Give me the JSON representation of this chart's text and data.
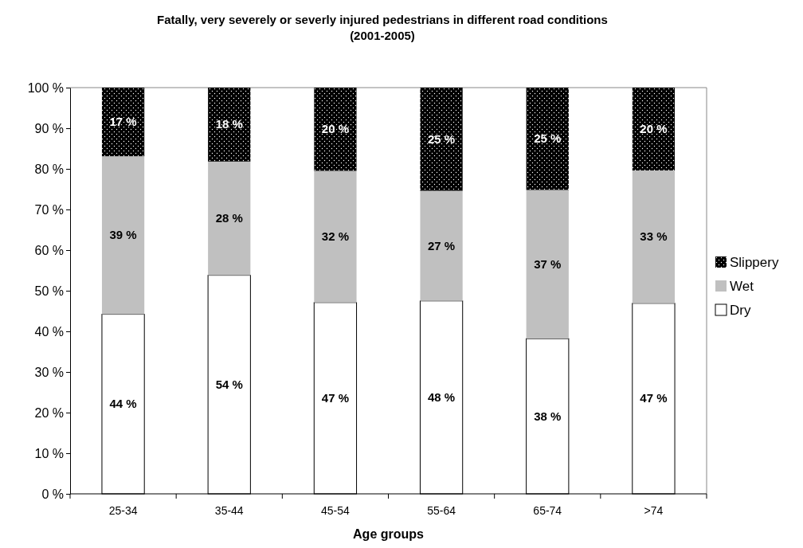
{
  "chart_data": {
    "type": "bar",
    "stacked": true,
    "title": "Fatally, very severely or severly injured pedestrians in different road conditions (2001-2005)",
    "xlabel": "Age groups",
    "categories": [
      "25-34",
      "35-44",
      "45-54",
      "55-64",
      "65-74",
      ">74"
    ],
    "series": [
      {
        "name": "Dry",
        "color": "#ffffff",
        "values": [
          44.2,
          53.8,
          47.1,
          47.5,
          38.2,
          46.9
        ],
        "value_labels": [
          "44 %",
          "54 %",
          "47 %",
          "48 %",
          "38 %",
          "47 %"
        ]
      },
      {
        "name": "Wet",
        "color": "#c0c0c0",
        "values": [
          38.9,
          28.0,
          32.4,
          27.1,
          36.6,
          32.7
        ],
        "value_labels": [
          "39 %",
          "28 %",
          "32 %",
          "27 %",
          "37 %",
          "33 %"
        ]
      },
      {
        "name": "Slippery",
        "color": "#000000",
        "values": [
          16.9,
          18.2,
          20.5,
          25.4,
          25.2,
          20.4
        ],
        "value_labels": [
          "17 %",
          "18 %",
          "20 %",
          "25 %",
          "25 %",
          "20 %"
        ]
      }
    ],
    "ylim": [
      0,
      100
    ],
    "yticks": [
      {
        "value": 0,
        "label": "0 %"
      },
      {
        "value": 10,
        "label": "10 %"
      },
      {
        "value": 20,
        "label": "20 %"
      },
      {
        "value": 30,
        "label": "30 %"
      },
      {
        "value": 40,
        "label": "40 %"
      },
      {
        "value": 50,
        "label": "50 %"
      },
      {
        "value": 60,
        "label": "60 %"
      },
      {
        "value": 70,
        "label": "70 %"
      },
      {
        "value": 80,
        "label": "80 %"
      },
      {
        "value": 90,
        "label": "90 %"
      },
      {
        "value": 100,
        "label": "100 %"
      }
    ],
    "legend": "right"
  }
}
